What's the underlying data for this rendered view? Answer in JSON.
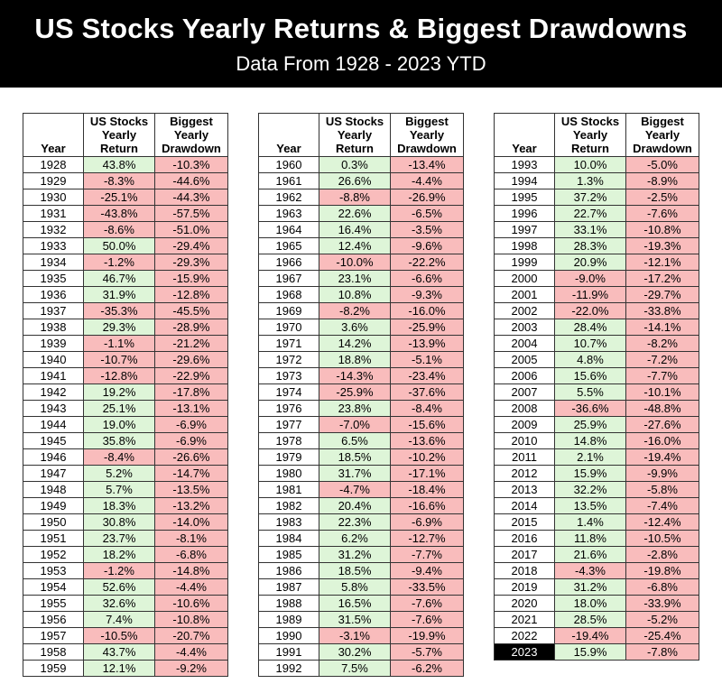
{
  "header": {
    "title": "US Stocks Yearly Returns & Biggest Drawdowns",
    "subtitle": "Data From 1928 - 2023 YTD"
  },
  "colors": {
    "positive": "#def5d8",
    "negative": "#f9bcbc",
    "highlight": "#000000"
  },
  "chart_data": {
    "type": "table",
    "columns": [
      "Year",
      "US Stocks Yearly Return",
      "Biggest Yearly Drawdown"
    ],
    "column_lines": [
      [
        "Year"
      ],
      [
        "US Stocks",
        "Yearly",
        "Return"
      ],
      [
        "Biggest",
        "Yearly",
        "Drawdown"
      ]
    ],
    "highlighted_year": "2023",
    "tables": [
      [
        [
          "1928",
          "43.8%",
          "-10.3%"
        ],
        [
          "1929",
          "-8.3%",
          "-44.6%"
        ],
        [
          "1930",
          "-25.1%",
          "-44.3%"
        ],
        [
          "1931",
          "-43.8%",
          "-57.5%"
        ],
        [
          "1932",
          "-8.6%",
          "-51.0%"
        ],
        [
          "1933",
          "50.0%",
          "-29.4%"
        ],
        [
          "1934",
          "-1.2%",
          "-29.3%"
        ],
        [
          "1935",
          "46.7%",
          "-15.9%"
        ],
        [
          "1936",
          "31.9%",
          "-12.8%"
        ],
        [
          "1937",
          "-35.3%",
          "-45.5%"
        ],
        [
          "1938",
          "29.3%",
          "-28.9%"
        ],
        [
          "1939",
          "-1.1%",
          "-21.2%"
        ],
        [
          "1940",
          "-10.7%",
          "-29.6%"
        ],
        [
          "1941",
          "-12.8%",
          "-22.9%"
        ],
        [
          "1942",
          "19.2%",
          "-17.8%"
        ],
        [
          "1943",
          "25.1%",
          "-13.1%"
        ],
        [
          "1944",
          "19.0%",
          "-6.9%"
        ],
        [
          "1945",
          "35.8%",
          "-6.9%"
        ],
        [
          "1946",
          "-8.4%",
          "-26.6%"
        ],
        [
          "1947",
          "5.2%",
          "-14.7%"
        ],
        [
          "1948",
          "5.7%",
          "-13.5%"
        ],
        [
          "1949",
          "18.3%",
          "-13.2%"
        ],
        [
          "1950",
          "30.8%",
          "-14.0%"
        ],
        [
          "1951",
          "23.7%",
          "-8.1%"
        ],
        [
          "1952",
          "18.2%",
          "-6.8%"
        ],
        [
          "1953",
          "-1.2%",
          "-14.8%"
        ],
        [
          "1954",
          "52.6%",
          "-4.4%"
        ],
        [
          "1955",
          "32.6%",
          "-10.6%"
        ],
        [
          "1956",
          "7.4%",
          "-10.8%"
        ],
        [
          "1957",
          "-10.5%",
          "-20.7%"
        ],
        [
          "1958",
          "43.7%",
          "-4.4%"
        ],
        [
          "1959",
          "12.1%",
          "-9.2%"
        ]
      ],
      [
        [
          "1960",
          "0.3%",
          "-13.4%"
        ],
        [
          "1961",
          "26.6%",
          "-4.4%"
        ],
        [
          "1962",
          "-8.8%",
          "-26.9%"
        ],
        [
          "1963",
          "22.6%",
          "-6.5%"
        ],
        [
          "1964",
          "16.4%",
          "-3.5%"
        ],
        [
          "1965",
          "12.4%",
          "-9.6%"
        ],
        [
          "1966",
          "-10.0%",
          "-22.2%"
        ],
        [
          "1967",
          "23.1%",
          "-6.6%"
        ],
        [
          "1968",
          "10.8%",
          "-9.3%"
        ],
        [
          "1969",
          "-8.2%",
          "-16.0%"
        ],
        [
          "1970",
          "3.6%",
          "-25.9%"
        ],
        [
          "1971",
          "14.2%",
          "-13.9%"
        ],
        [
          "1972",
          "18.8%",
          "-5.1%"
        ],
        [
          "1973",
          "-14.3%",
          "-23.4%"
        ],
        [
          "1974",
          "-25.9%",
          "-37.6%"
        ],
        [
          "1976",
          "23.8%",
          "-8.4%"
        ],
        [
          "1977",
          "-7.0%",
          "-15.6%"
        ],
        [
          "1978",
          "6.5%",
          "-13.6%"
        ],
        [
          "1979",
          "18.5%",
          "-10.2%"
        ],
        [
          "1980",
          "31.7%",
          "-17.1%"
        ],
        [
          "1981",
          "-4.7%",
          "-18.4%"
        ],
        [
          "1982",
          "20.4%",
          "-16.6%"
        ],
        [
          "1983",
          "22.3%",
          "-6.9%"
        ],
        [
          "1984",
          "6.2%",
          "-12.7%"
        ],
        [
          "1985",
          "31.2%",
          "-7.7%"
        ],
        [
          "1986",
          "18.5%",
          "-9.4%"
        ],
        [
          "1987",
          "5.8%",
          "-33.5%"
        ],
        [
          "1988",
          "16.5%",
          "-7.6%"
        ],
        [
          "1989",
          "31.5%",
          "-7.6%"
        ],
        [
          "1990",
          "-3.1%",
          "-19.9%"
        ],
        [
          "1991",
          "30.2%",
          "-5.7%"
        ],
        [
          "1992",
          "7.5%",
          "-6.2%"
        ]
      ],
      [
        [
          "1993",
          "10.0%",
          "-5.0%"
        ],
        [
          "1994",
          "1.3%",
          "-8.9%"
        ],
        [
          "1995",
          "37.2%",
          "-2.5%"
        ],
        [
          "1996",
          "22.7%",
          "-7.6%"
        ],
        [
          "1997",
          "33.1%",
          "-10.8%"
        ],
        [
          "1998",
          "28.3%",
          "-19.3%"
        ],
        [
          "1999",
          "20.9%",
          "-12.1%"
        ],
        [
          "2000",
          "-9.0%",
          "-17.2%"
        ],
        [
          "2001",
          "-11.9%",
          "-29.7%"
        ],
        [
          "2002",
          "-22.0%",
          "-33.8%"
        ],
        [
          "2003",
          "28.4%",
          "-14.1%"
        ],
        [
          "2004",
          "10.7%",
          "-8.2%"
        ],
        [
          "2005",
          "4.8%",
          "-7.2%"
        ],
        [
          "2006",
          "15.6%",
          "-7.7%"
        ],
        [
          "2007",
          "5.5%",
          "-10.1%"
        ],
        [
          "2008",
          "-36.6%",
          "-48.8%"
        ],
        [
          "2009",
          "25.9%",
          "-27.6%"
        ],
        [
          "2010",
          "14.8%",
          "-16.0%"
        ],
        [
          "2011",
          "2.1%",
          "-19.4%"
        ],
        [
          "2012",
          "15.9%",
          "-9.9%"
        ],
        [
          "2013",
          "32.2%",
          "-5.8%"
        ],
        [
          "2014",
          "13.5%",
          "-7.4%"
        ],
        [
          "2015",
          "1.4%",
          "-12.4%"
        ],
        [
          "2016",
          "11.8%",
          "-10.5%"
        ],
        [
          "2017",
          "21.6%",
          "-2.8%"
        ],
        [
          "2018",
          "-4.3%",
          "-19.8%"
        ],
        [
          "2019",
          "31.2%",
          "-6.8%"
        ],
        [
          "2020",
          "18.0%",
          "-33.9%"
        ],
        [
          "2021",
          "28.5%",
          "-5.2%"
        ],
        [
          "2022",
          "-19.4%",
          "-25.4%"
        ],
        [
          "2023",
          "15.9%",
          "-7.8%"
        ]
      ]
    ]
  }
}
